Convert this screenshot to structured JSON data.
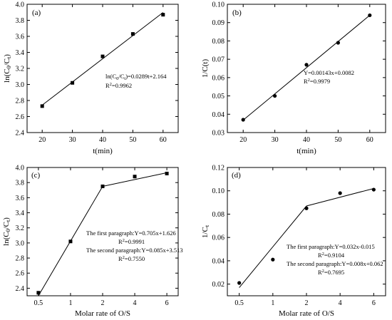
{
  "chart_data": [
    {
      "type": "scatter",
      "panel_label": "(a)",
      "marker": "square",
      "xlabel": "t(min)",
      "ylabel": "ln(C0/Ct)",
      "ylabel_text": "ln(C",
      "ylabel_sub1": "0",
      "ylabel_mid": "/C",
      "ylabel_sub2": "t",
      "ylabel_end": ")",
      "xlim": [
        15,
        65
      ],
      "ylim": [
        2.4,
        4.0
      ],
      "xticks": [
        20,
        30,
        40,
        50,
        60
      ],
      "xtick_labels": [
        "20",
        "30",
        "40",
        "50",
        "60"
      ],
      "yticks": [
        2.4,
        2.6,
        2.8,
        3.0,
        3.2,
        3.4,
        3.6,
        3.8,
        4.0
      ],
      "ytick_labels": [
        "2.4",
        "2.6",
        "2.8",
        "3.0",
        "3.2",
        "3.4",
        "3.6",
        "3.8",
        "4.0"
      ],
      "points": [
        [
          20,
          2.73
        ],
        [
          30,
          3.02
        ],
        [
          40,
          3.35
        ],
        [
          50,
          3.63
        ],
        [
          60,
          3.87
        ]
      ],
      "fit_lines": [
        {
          "x": [
            20,
            60
          ],
          "y": [
            2.742,
            3.898
          ]
        }
      ],
      "annotations": [
        "ln(C0/Ct)=0.0289t+2.164",
        "R2=0.9962"
      ]
    },
    {
      "type": "scatter",
      "panel_label": "(b)",
      "marker": "circle",
      "xlabel": "t(min)",
      "ylabel": "1/C(t)",
      "xlim": [
        15,
        65
      ],
      "ylim": [
        0.03,
        0.1
      ],
      "xticks": [
        20,
        30,
        40,
        50,
        60
      ],
      "xtick_labels": [
        "20",
        "30",
        "40",
        "50",
        "60"
      ],
      "yticks": [
        0.03,
        0.04,
        0.05,
        0.06,
        0.07,
        0.08,
        0.09,
        0.1
      ],
      "ytick_labels": [
        "0.03",
        "0.04",
        "0.05",
        "0.06",
        "0.07",
        "0.08",
        "0.09",
        "0.10"
      ],
      "points": [
        [
          20,
          0.037
        ],
        [
          30,
          0.05
        ],
        [
          40,
          0.067
        ],
        [
          50,
          0.079
        ],
        [
          60,
          0.094
        ]
      ],
      "fit_lines": [
        {
          "x": [
            20,
            60
          ],
          "y": [
            0.0368,
            0.094
          ]
        }
      ],
      "annotations": [
        "Y=0.00143x+0.0082",
        "R2=0.9979"
      ]
    },
    {
      "type": "scatter",
      "panel_label": "(c)",
      "marker": "square",
      "xlabel": "Molar rate of O/S",
      "ylabel": "ln(C0/Ct)",
      "xlim": [
        0.5,
        6.5
      ],
      "ylim": [
        2.3,
        4.0
      ],
      "xticks": [
        0.5,
        1,
        2,
        4,
        6
      ],
      "xtick_labels": [
        "0.5",
        "1",
        "2",
        "4",
        "6"
      ],
      "yticks": [
        2.4,
        2.6,
        2.8,
        3.0,
        3.2,
        3.4,
        3.6,
        3.8,
        4.0
      ],
      "ytick_labels": [
        "2.4",
        "2.6",
        "2.8",
        "3.0",
        "3.2",
        "3.4",
        "3.6",
        "3.8",
        "4.0"
      ],
      "points": [
        [
          0.5,
          2.34
        ],
        [
          1,
          3.02
        ],
        [
          2,
          3.75
        ],
        [
          4,
          3.88
        ],
        [
          6,
          3.92
        ]
      ],
      "fit_lines": [
        {
          "x": [
            0.5,
            2
          ],
          "y": [
            2.3,
            3.75
          ]
        },
        {
          "x": [
            2,
            6
          ],
          "y": [
            3.75,
            3.93
          ]
        }
      ],
      "annotations": [
        "The first paragraph:Y=0.705x+1.626",
        "R2=0.9991",
        "The second paragraph:Y=0.085x+3.513",
        "R2=0.7550"
      ]
    },
    {
      "type": "scatter",
      "panel_label": "(d)",
      "marker": "circle",
      "xlabel": "Molar rate of O/S",
      "ylabel": "1/Ct",
      "xlim": [
        0.5,
        6.5
      ],
      "ylim": [
        0.01,
        0.12
      ],
      "xticks": [
        0.5,
        1,
        2,
        4,
        6
      ],
      "xtick_labels": [
        "0.5",
        "1",
        "2",
        "4",
        "6"
      ],
      "yticks": [
        0.02,
        0.04,
        0.06,
        0.08,
        0.1,
        0.12
      ],
      "ytick_labels": [
        "0.02",
        "0.04",
        "0.06",
        "0.08",
        "0.10",
        "0.12"
      ],
      "points": [
        [
          0.5,
          0.021
        ],
        [
          1,
          0.041
        ],
        [
          2,
          0.085
        ],
        [
          4,
          0.098
        ],
        [
          6,
          0.101
        ]
      ],
      "fit_lines": [
        {
          "x": [
            0.5,
            2
          ],
          "y": [
            0.017,
            0.087
          ]
        },
        {
          "x": [
            2,
            6
          ],
          "y": [
            0.087,
            0.102
          ]
        }
      ],
      "annotations": [
        "The first paragraph:Y=0.032x-0.015",
        "R2=0.9104",
        "The second paragraph:Y=0.008x+0.062",
        "R2=0.7695"
      ]
    }
  ]
}
